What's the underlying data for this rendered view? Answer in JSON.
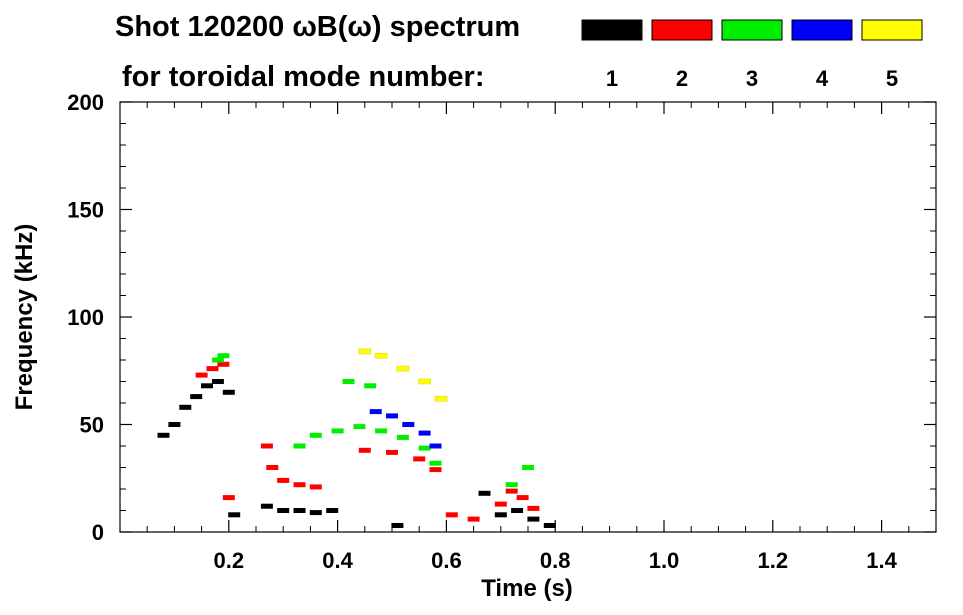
{
  "chart_data": {
    "type": "scatter",
    "title_line1": "Shot 120200 ωB(ω) spectrum",
    "title_line2": "for toroidal mode number:",
    "xlabel": "Time (s)",
    "ylabel": "Frequency (kHz)",
    "xlim": [
      0.0,
      1.5
    ],
    "ylim": [
      0,
      200
    ],
    "x_ticks": [
      "0.2",
      "0.4",
      "0.6",
      "0.8",
      "1.0",
      "1.2",
      "1.4"
    ],
    "x_tick_values": [
      0.2,
      0.4,
      0.6,
      0.8,
      1.0,
      1.2,
      1.4
    ],
    "y_ticks": [
      "0",
      "50",
      "100",
      "150",
      "200"
    ],
    "y_tick_values": [
      0,
      50,
      100,
      150,
      200
    ],
    "legend": [
      {
        "label": "1",
        "color": "#000000"
      },
      {
        "label": "2",
        "color": "#ff0000"
      },
      {
        "label": "3",
        "color": "#00ee00"
      },
      {
        "label": "4",
        "color": "#0000ff"
      },
      {
        "label": "5",
        "color": "#ffff00"
      }
    ],
    "series": [
      {
        "name": "1",
        "color": "#000000",
        "x": [
          0.08,
          0.1,
          0.12,
          0.14,
          0.16,
          0.18,
          0.2,
          0.21,
          0.27,
          0.3,
          0.33,
          0.36,
          0.39,
          0.51,
          0.67,
          0.7,
          0.73,
          0.76,
          0.79
        ],
        "y": [
          45,
          50,
          58,
          63,
          68,
          70,
          65,
          8,
          12,
          10,
          10,
          9,
          10,
          3,
          18,
          8,
          10,
          6,
          3
        ]
      },
      {
        "name": "2",
        "color": "#ff0000",
        "x": [
          0.15,
          0.17,
          0.19,
          0.2,
          0.27,
          0.28,
          0.3,
          0.33,
          0.36,
          0.45,
          0.5,
          0.55,
          0.58,
          0.61,
          0.65,
          0.7,
          0.72,
          0.74,
          0.76
        ],
        "y": [
          73,
          76,
          78,
          16,
          40,
          30,
          24,
          22,
          21,
          38,
          37,
          34,
          29,
          8,
          6,
          13,
          19,
          16,
          11
        ]
      },
      {
        "name": "3",
        "color": "#00ee00",
        "x": [
          0.18,
          0.19,
          0.33,
          0.36,
          0.4,
          0.44,
          0.48,
          0.52,
          0.56,
          0.58,
          0.42,
          0.46,
          0.72,
          0.75
        ],
        "y": [
          80,
          82,
          40,
          45,
          47,
          49,
          47,
          44,
          39,
          32,
          70,
          68,
          22,
          30
        ]
      },
      {
        "name": "4",
        "color": "#0000ff",
        "x": [
          0.47,
          0.5,
          0.53,
          0.56,
          0.58
        ],
        "y": [
          56,
          54,
          50,
          46,
          40
        ]
      },
      {
        "name": "5",
        "color": "#ffff00",
        "x": [
          0.45,
          0.48,
          0.52,
          0.56,
          0.59
        ],
        "y": [
          84,
          82,
          76,
          70,
          62
        ]
      }
    ]
  }
}
